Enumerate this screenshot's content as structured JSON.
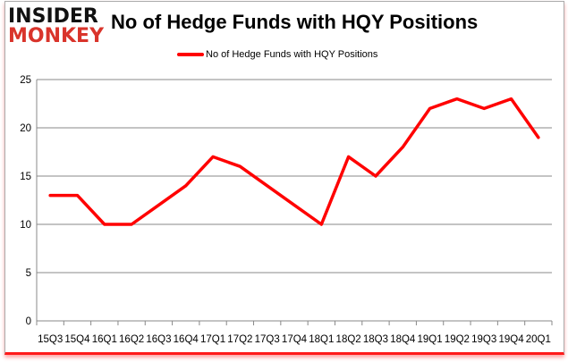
{
  "logo": {
    "line1": "INSIDER",
    "line2": "MONKEY"
  },
  "chart_data": {
    "type": "line",
    "title": "No of Hedge Funds with HQY Positions",
    "xlabel": "",
    "ylabel": "",
    "categories": [
      "15Q3",
      "15Q4",
      "16Q1",
      "16Q2",
      "16Q3",
      "16Q4",
      "17Q1",
      "17Q2",
      "17Q3",
      "17Q4",
      "18Q1",
      "18Q2",
      "18Q3",
      "18Q4",
      "19Q1",
      "19Q2",
      "19Q3",
      "19Q4",
      "20Q1"
    ],
    "series": [
      {
        "name": "No of Hedge Funds with HQY Positions",
        "color": "#ff0000",
        "values": [
          13,
          13,
          10,
          10,
          12,
          14,
          17,
          16,
          14,
          12,
          10,
          17,
          15,
          18,
          22,
          23,
          22,
          23,
          19
        ]
      }
    ],
    "ylim": [
      0,
      25
    ],
    "yticks": [
      0,
      5,
      10,
      15,
      20,
      25
    ],
    "grid": true,
    "legend": "top-center"
  }
}
